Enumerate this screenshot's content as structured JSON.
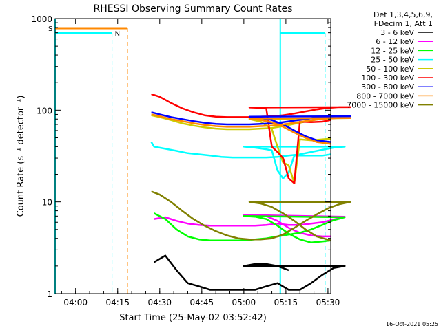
{
  "chart_data": {
    "type": "line",
    "title": "RHESSI Observing Summary Count Rates",
    "xlabel": "Start Time (25-May-02 03:52:42)",
    "ylabel": "Count Rate (s⁻¹ detector⁻¹)",
    "yscale": "log",
    "ylim": [
      1,
      1000
    ],
    "xlim_minutes": [
      "03:52:42",
      "05:31:00"
    ],
    "x_ticks": [
      "04:00",
      "04:15",
      "04:30",
      "04:45",
      "05:00",
      "05:15",
      "05:30"
    ],
    "y_ticks": [
      "1",
      "10",
      "100",
      "1000"
    ],
    "info_lines": [
      "Det 1,3,4,5,6,9,",
      "FDecim 1, Att 1"
    ],
    "legend_position": "top-right",
    "footer_timestamp": "16-Oct-2021 05:25",
    "flag_labels": {
      "saa": "S",
      "night": "N"
    },
    "series": [
      {
        "name": "3 - 6 keV",
        "color": "#000000",
        "points": [
          [
            4.28,
            2.2
          ],
          [
            4.32,
            2.6
          ],
          [
            4.36,
            1.8
          ],
          [
            4.4,
            1.3
          ],
          [
            4.44,
            1.2
          ],
          [
            4.48,
            1.1
          ],
          [
            4.52,
            1.1
          ],
          [
            4.56,
            1.1
          ],
          [
            4.6,
            1.1
          ],
          [
            4.64,
            1.1
          ],
          [
            4.68,
            1.2
          ],
          [
            4.72,
            1.3
          ],
          [
            4.76,
            1.1
          ],
          [
            4.8,
            1.1
          ],
          [
            4.84,
            1.3
          ],
          [
            4.88,
            1.6
          ],
          [
            4.92,
            1.9
          ],
          [
            4.96,
            2.0
          ],
          [
            5.0,
            2.0
          ],
          [
            5.04,
            2.1
          ],
          [
            5.08,
            2.1
          ],
          [
            5.12,
            2.0
          ],
          [
            5.16,
            1.8
          ]
        ]
      },
      {
        "name": "6 - 12 keV",
        "color": "#ff00ff",
        "points": [
          [
            4.28,
            6.5
          ],
          [
            4.32,
            6.8
          ],
          [
            4.36,
            6.2
          ],
          [
            4.4,
            5.8
          ],
          [
            4.44,
            5.6
          ],
          [
            4.48,
            5.5
          ],
          [
            4.52,
            5.5
          ],
          [
            4.56,
            5.5
          ],
          [
            4.6,
            5.5
          ],
          [
            4.64,
            5.5
          ],
          [
            4.68,
            5.6
          ],
          [
            4.72,
            5.8
          ],
          [
            4.76,
            5.6
          ],
          [
            4.8,
            5.6
          ],
          [
            4.84,
            5.8
          ],
          [
            4.88,
            6.0
          ],
          [
            4.92,
            6.4
          ],
          [
            4.96,
            6.9
          ],
          [
            5.0,
            7.2
          ],
          [
            5.04,
            7.2
          ],
          [
            5.08,
            7.0
          ],
          [
            5.12,
            6.2
          ],
          [
            5.16,
            5.2
          ],
          [
            5.2,
            4.6
          ],
          [
            5.24,
            4.3
          ],
          [
            5.28,
            4.2
          ],
          [
            5.31,
            4.2
          ]
        ]
      },
      {
        "name": "12 - 25 keV",
        "color": "#00ff00",
        "points": [
          [
            4.28,
            7.5
          ],
          [
            4.32,
            6.5
          ],
          [
            4.36,
            5.0
          ],
          [
            4.4,
            4.2
          ],
          [
            4.44,
            3.9
          ],
          [
            4.48,
            3.8
          ],
          [
            4.52,
            3.8
          ],
          [
            4.56,
            3.8
          ],
          [
            4.6,
            3.8
          ],
          [
            4.64,
            3.9
          ],
          [
            4.68,
            4.0
          ],
          [
            4.72,
            4.2
          ],
          [
            4.76,
            4.4
          ],
          [
            4.8,
            4.6
          ],
          [
            4.84,
            5.0
          ],
          [
            4.88,
            5.6
          ],
          [
            4.92,
            6.3
          ],
          [
            4.96,
            6.8
          ],
          [
            5.0,
            7.0
          ],
          [
            5.04,
            6.9
          ],
          [
            5.08,
            6.5
          ],
          [
            5.12,
            5.5
          ],
          [
            5.16,
            4.5
          ],
          [
            5.2,
            3.9
          ],
          [
            5.24,
            3.6
          ],
          [
            5.28,
            3.7
          ],
          [
            5.31,
            3.8
          ]
        ]
      },
      {
        "name": "25 - 50 keV",
        "color": "#00ffff",
        "points": [
          [
            4.27,
            45
          ],
          [
            4.28,
            40
          ],
          [
            4.3,
            39
          ],
          [
            4.32,
            38
          ],
          [
            4.36,
            36
          ],
          [
            4.4,
            34
          ],
          [
            4.44,
            33
          ],
          [
            4.48,
            32
          ],
          [
            4.52,
            31
          ],
          [
            4.56,
            30.5
          ],
          [
            4.6,
            30.5
          ],
          [
            4.64,
            30.5
          ],
          [
            4.68,
            30.5
          ],
          [
            4.72,
            31
          ],
          [
            4.76,
            32
          ],
          [
            4.8,
            33
          ],
          [
            4.84,
            35
          ],
          [
            4.88,
            37
          ],
          [
            4.92,
            39
          ],
          [
            4.96,
            40
          ],
          [
            5.0,
            40
          ],
          [
            5.04,
            39
          ],
          [
            5.08,
            37.5
          ],
          [
            5.1,
            36.5
          ],
          [
            5.12,
            22
          ],
          [
            5.14,
            18
          ],
          [
            5.16,
            21
          ],
          [
            5.18,
            32
          ],
          [
            5.2,
            32
          ],
          [
            5.24,
            32
          ],
          [
            5.28,
            32
          ],
          [
            5.31,
            33
          ]
        ]
      },
      {
        "name": "50 - 100 keV",
        "color": "#cccc00",
        "points": [
          [
            4.27,
            88
          ],
          [
            4.3,
            84
          ],
          [
            4.34,
            78
          ],
          [
            4.38,
            72
          ],
          [
            4.42,
            68
          ],
          [
            4.46,
            65
          ],
          [
            4.5,
            63
          ],
          [
            4.54,
            62
          ],
          [
            4.58,
            62
          ],
          [
            4.62,
            62
          ],
          [
            4.66,
            63
          ],
          [
            4.7,
            64
          ],
          [
            4.74,
            67
          ],
          [
            4.78,
            71
          ],
          [
            4.82,
            75
          ],
          [
            4.86,
            79
          ],
          [
            4.9,
            81
          ],
          [
            4.94,
            82
          ],
          [
            4.98,
            82
          ],
          [
            5.02,
            80
          ],
          [
            5.06,
            75
          ],
          [
            5.1,
            62
          ],
          [
            5.12,
            40
          ],
          [
            5.14,
            27
          ],
          [
            5.16,
            25
          ],
          [
            5.18,
            16
          ],
          [
            5.2,
            48
          ],
          [
            5.24,
            47
          ],
          [
            5.28,
            48
          ],
          [
            5.31,
            49
          ]
        ]
      },
      {
        "name": "100 - 300 keV",
        "color": "#ff0000",
        "points": [
          [
            4.27,
            150
          ],
          [
            4.3,
            140
          ],
          [
            4.34,
            120
          ],
          [
            4.38,
            105
          ],
          [
            4.42,
            95
          ],
          [
            4.46,
            88
          ],
          [
            4.5,
            85
          ],
          [
            4.54,
            84
          ],
          [
            4.58,
            84
          ],
          [
            4.62,
            84
          ],
          [
            4.66,
            85
          ],
          [
            4.7,
            86
          ],
          [
            4.74,
            88
          ],
          [
            4.78,
            92
          ],
          [
            4.82,
            97
          ],
          [
            4.86,
            102
          ],
          [
            4.9,
            106
          ],
          [
            4.94,
            108
          ],
          [
            4.98,
            108
          ],
          [
            5.02,
            107
          ],
          [
            5.06,
            106
          ],
          [
            5.08,
            105
          ],
          [
            5.1,
            40
          ],
          [
            5.12,
            35
          ],
          [
            5.14,
            30
          ],
          [
            5.16,
            18
          ],
          [
            5.18,
            16
          ],
          [
            5.2,
            75
          ],
          [
            5.24,
            74
          ],
          [
            5.28,
            75
          ],
          [
            5.31,
            78
          ]
        ]
      },
      {
        "name": "300 - 800 keV",
        "color": "#0000ff",
        "points": [
          [
            4.27,
            95
          ],
          [
            4.3,
            90
          ],
          [
            4.34,
            84
          ],
          [
            4.38,
            80
          ],
          [
            4.42,
            76
          ],
          [
            4.46,
            73
          ],
          [
            4.5,
            71
          ],
          [
            4.54,
            70
          ],
          [
            4.58,
            70
          ],
          [
            4.62,
            70
          ],
          [
            4.66,
            71
          ],
          [
            4.7,
            72
          ],
          [
            4.74,
            74
          ],
          [
            4.78,
            77
          ],
          [
            4.82,
            80
          ],
          [
            4.86,
            83
          ],
          [
            4.9,
            85
          ],
          [
            4.94,
            86
          ],
          [
            4.98,
            86
          ],
          [
            5.02,
            85
          ],
          [
            5.06,
            82
          ],
          [
            5.1,
            78
          ],
          [
            5.14,
            70
          ],
          [
            5.18,
            60
          ],
          [
            5.22,
            52
          ],
          [
            5.26,
            47
          ],
          [
            5.31,
            45
          ]
        ]
      },
      {
        "name": "800 - 7000 keV",
        "color": "#ff8800",
        "points": [
          [
            4.27,
            90
          ],
          [
            4.3,
            86
          ],
          [
            4.34,
            80
          ],
          [
            4.38,
            76
          ],
          [
            4.42,
            72
          ],
          [
            4.46,
            69
          ],
          [
            4.5,
            67
          ],
          [
            4.54,
            66
          ],
          [
            4.58,
            66
          ],
          [
            4.62,
            66
          ],
          [
            4.66,
            67
          ],
          [
            4.7,
            68
          ],
          [
            4.74,
            70
          ],
          [
            4.78,
            73
          ],
          [
            4.82,
            76
          ],
          [
            4.86,
            79
          ],
          [
            4.9,
            81
          ],
          [
            4.94,
            82
          ],
          [
            4.98,
            82
          ],
          [
            5.02,
            81
          ],
          [
            5.06,
            78
          ],
          [
            5.1,
            74
          ],
          [
            5.14,
            66
          ],
          [
            5.18,
            57
          ],
          [
            5.22,
            50
          ],
          [
            5.26,
            45
          ],
          [
            5.31,
            43
          ]
        ]
      },
      {
        "name": "7000 - 15000 keV",
        "color": "#808000",
        "points": [
          [
            4.27,
            13
          ],
          [
            4.3,
            12
          ],
          [
            4.34,
            10
          ],
          [
            4.38,
            8
          ],
          [
            4.42,
            6.5
          ],
          [
            4.46,
            5.5
          ],
          [
            4.5,
            4.8
          ],
          [
            4.54,
            4.3
          ],
          [
            4.58,
            4.0
          ],
          [
            4.62,
            3.9
          ],
          [
            4.66,
            3.9
          ],
          [
            4.7,
            4.0
          ],
          [
            4.74,
            4.4
          ],
          [
            4.78,
            5.2
          ],
          [
            4.82,
            6.2
          ],
          [
            4.86,
            7.3
          ],
          [
            4.9,
            8.5
          ],
          [
            4.94,
            9.4
          ],
          [
            4.98,
            10
          ],
          [
            5.02,
            10
          ],
          [
            5.06,
            9.6
          ],
          [
            5.1,
            8.8
          ],
          [
            5.14,
            7.5
          ],
          [
            5.18,
            6.2
          ],
          [
            5.22,
            5.0
          ],
          [
            5.26,
            4.2
          ],
          [
            5.31,
            3.8
          ]
        ]
      }
    ]
  }
}
